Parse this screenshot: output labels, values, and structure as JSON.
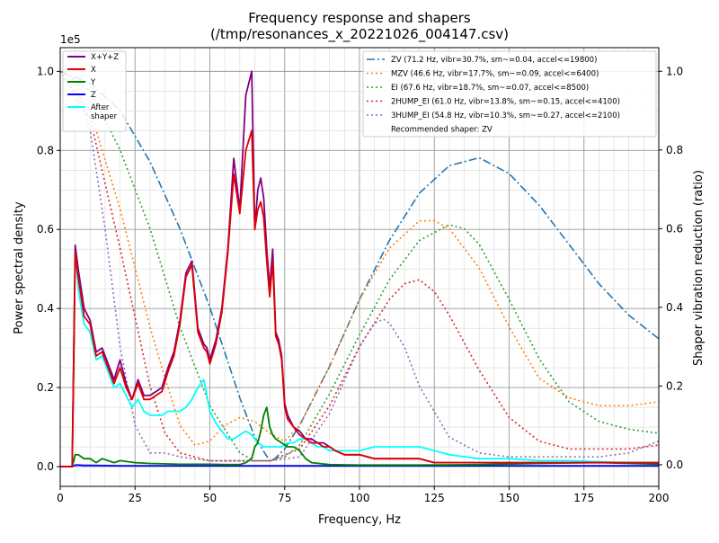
{
  "chart_data": {
    "type": "line",
    "title": "Frequency response and shapers",
    "subtitle": "(/tmp/resonances_x_20221026_004147.csv)",
    "xlabel": "Frequency, Hz",
    "ylabel": "Power spectral density",
    "y2label": "Shaper vibration reduction (ratio)",
    "y_scale_label": "1e5",
    "xlim": [
      0,
      200
    ],
    "ylim": [
      -0.05,
      1.06
    ],
    "y2lim": [
      -0.055,
      1.06
    ],
    "x_ticks": [
      0,
      25,
      50,
      75,
      100,
      125,
      150,
      175,
      200
    ],
    "y_ticks": [
      0.0,
      0.2,
      0.4,
      0.6,
      0.8,
      1.0
    ],
    "y2_ticks": [
      0.0,
      0.2,
      0.4,
      0.6,
      0.8,
      1.0
    ],
    "grid": true,
    "legend_left_placement": "top-left",
    "legend_right_placement": "top-right",
    "recommended_text": "Recommended shaper: ZV",
    "psd_series": [
      {
        "name": "X+Y+Z",
        "color": "#800080",
        "style": "solid",
        "x": [
          0,
          4,
          5,
          6,
          8,
          10,
          12,
          14,
          16,
          18,
          20,
          22,
          24,
          26,
          28,
          30,
          32,
          34,
          36,
          38,
          40,
          42,
          44,
          46,
          48,
          49,
          50,
          52,
          54,
          56,
          58,
          60,
          62,
          64,
          65,
          66,
          67,
          68,
          69,
          70,
          71,
          72,
          73,
          74,
          75,
          76,
          78,
          80,
          82,
          84,
          86,
          88,
          90,
          92,
          95,
          100,
          105,
          110,
          115,
          120,
          125,
          130,
          140,
          150,
          160,
          170,
          180,
          190,
          200
        ],
        "y": [
          0,
          0,
          0.56,
          0.5,
          0.4,
          0.37,
          0.29,
          0.3,
          0.26,
          0.22,
          0.27,
          0.21,
          0.17,
          0.22,
          0.18,
          0.18,
          0.19,
          0.2,
          0.25,
          0.29,
          0.37,
          0.49,
          0.52,
          0.35,
          0.31,
          0.3,
          0.27,
          0.32,
          0.4,
          0.55,
          0.78,
          0.65,
          0.94,
          1.0,
          0.6,
          0.7,
          0.73,
          0.68,
          0.55,
          0.45,
          0.55,
          0.34,
          0.32,
          0.28,
          0.16,
          0.13,
          0.1,
          0.09,
          0.07,
          0.07,
          0.06,
          0.06,
          0.05,
          0.04,
          0.03,
          0.03,
          0.02,
          0.02,
          0.02,
          0.02,
          0.01,
          0.01,
          0.01,
          0.01,
          0.01,
          0.01,
          0.01,
          0.01,
          0.01
        ]
      },
      {
        "name": "X",
        "color": "#e00000",
        "style": "solid",
        "x": [
          0,
          4,
          5,
          6,
          8,
          10,
          12,
          14,
          16,
          18,
          20,
          22,
          24,
          26,
          28,
          30,
          32,
          34,
          36,
          38,
          40,
          42,
          44,
          46,
          48,
          49,
          50,
          52,
          54,
          56,
          58,
          60,
          62,
          64,
          65,
          66,
          67,
          68,
          69,
          70,
          71,
          72,
          73,
          74,
          75,
          76,
          78,
          80,
          82,
          84,
          86,
          88,
          90,
          92,
          95,
          100,
          105,
          110,
          115,
          120,
          125,
          130,
          140,
          150,
          160,
          170,
          180,
          190,
          200
        ],
        "y": [
          0,
          0,
          0.54,
          0.48,
          0.38,
          0.36,
          0.28,
          0.29,
          0.25,
          0.21,
          0.25,
          0.2,
          0.17,
          0.21,
          0.17,
          0.17,
          0.18,
          0.19,
          0.24,
          0.28,
          0.36,
          0.48,
          0.51,
          0.34,
          0.3,
          0.29,
          0.26,
          0.31,
          0.39,
          0.54,
          0.74,
          0.64,
          0.8,
          0.85,
          0.6,
          0.65,
          0.67,
          0.63,
          0.52,
          0.43,
          0.52,
          0.33,
          0.31,
          0.27,
          0.15,
          0.12,
          0.1,
          0.08,
          0.07,
          0.06,
          0.06,
          0.05,
          0.05,
          0.04,
          0.03,
          0.03,
          0.02,
          0.02,
          0.02,
          0.02,
          0.01,
          0.01,
          0.01,
          0.01,
          0.01,
          0.01,
          0.01,
          0.01,
          0.01
        ]
      },
      {
        "name": "Y",
        "color": "#008000",
        "style": "solid",
        "x": [
          0,
          4,
          5,
          6,
          8,
          10,
          12,
          14,
          16,
          18,
          20,
          25,
          30,
          40,
          50,
          55,
          60,
          62,
          64,
          65,
          66,
          67,
          68,
          69,
          70,
          71,
          72,
          74,
          76,
          78,
          80,
          82,
          84,
          90,
          100,
          120,
          140,
          160,
          180,
          200
        ],
        "y": [
          0,
          0,
          0.03,
          0.03,
          0.02,
          0.02,
          0.01,
          0.02,
          0.015,
          0.01,
          0.015,
          0.01,
          0.008,
          0.006,
          0.006,
          0.005,
          0.005,
          0.01,
          0.02,
          0.05,
          0.06,
          0.09,
          0.13,
          0.15,
          0.1,
          0.08,
          0.07,
          0.06,
          0.05,
          0.05,
          0.04,
          0.02,
          0.01,
          0.005,
          0.004,
          0.004,
          0.005,
          0.008,
          0.01,
          0.006
        ]
      },
      {
        "name": "Z",
        "color": "#0000ff",
        "style": "solid",
        "x": [
          0,
          4,
          5,
          6,
          8,
          10,
          20,
          40,
          60,
          80,
          100,
          120,
          140,
          160,
          180,
          200
        ],
        "y": [
          0,
          0,
          0.004,
          0.004,
          0.003,
          0.003,
          0.002,
          0.002,
          0.002,
          0.002,
          0.002,
          0.002,
          0.002,
          0.002,
          0.002,
          0.002
        ]
      },
      {
        "name": "After\nshaper",
        "color": "#00ffff",
        "style": "solid",
        "x": [
          0,
          4,
          5,
          6,
          8,
          10,
          12,
          14,
          16,
          18,
          20,
          22,
          24,
          26,
          28,
          30,
          32,
          34,
          36,
          38,
          40,
          42,
          44,
          46,
          48,
          50,
          52,
          54,
          56,
          58,
          60,
          62,
          64,
          66,
          68,
          70,
          72,
          74,
          76,
          78,
          80,
          82,
          84,
          86,
          88,
          90,
          92,
          95,
          100,
          105,
          110,
          115,
          120,
          125,
          130,
          140,
          150,
          160,
          170,
          180,
          190,
          200
        ],
        "y": [
          0,
          0,
          0.55,
          0.45,
          0.36,
          0.34,
          0.27,
          0.28,
          0.24,
          0.2,
          0.21,
          0.18,
          0.15,
          0.17,
          0.14,
          0.13,
          0.13,
          0.13,
          0.14,
          0.14,
          0.14,
          0.15,
          0.17,
          0.2,
          0.22,
          0.14,
          0.11,
          0.09,
          0.07,
          0.07,
          0.08,
          0.09,
          0.08,
          0.06,
          0.05,
          0.05,
          0.05,
          0.05,
          0.06,
          0.06,
          0.07,
          0.07,
          0.06,
          0.05,
          0.05,
          0.04,
          0.04,
          0.04,
          0.04,
          0.05,
          0.05,
          0.05,
          0.05,
          0.04,
          0.03,
          0.02,
          0.02,
          0.015,
          0.015,
          0.012,
          0.01,
          0.008
        ]
      }
    ],
    "shaper_series": [
      {
        "name": "ZV (71.2 Hz, vibr=30.7%, sm~=0.04, accel<=19800)",
        "color": "#1f77b4",
        "style": "dashdot",
        "x": [
          0,
          10,
          20,
          30,
          40,
          50,
          60,
          65,
          70,
          71,
          75,
          80,
          90,
          100,
          110,
          120,
          130,
          140,
          150,
          160,
          170,
          180,
          190,
          200
        ],
        "y": [
          1.0,
          0.97,
          0.9,
          0.77,
          0.6,
          0.4,
          0.17,
          0.07,
          0.01,
          0.01,
          0.04,
          0.1,
          0.25,
          0.42,
          0.57,
          0.69,
          0.76,
          0.78,
          0.74,
          0.66,
          0.56,
          0.46,
          0.38,
          0.32
        ]
      },
      {
        "name": "MZV (46.6 Hz, vibr=17.7%, sm~=0.09, accel<=6400)",
        "color": "#ff7f0e",
        "style": "dotted",
        "x": [
          0,
          10,
          20,
          30,
          35,
          40,
          45,
          50,
          55,
          60,
          65,
          70,
          75,
          80,
          90,
          100,
          110,
          120,
          125,
          130,
          140,
          150,
          160,
          170,
          180,
          190,
          200
        ],
        "y": [
          1.0,
          0.9,
          0.65,
          0.35,
          0.22,
          0.1,
          0.05,
          0.06,
          0.1,
          0.12,
          0.11,
          0.08,
          0.06,
          0.1,
          0.25,
          0.42,
          0.55,
          0.62,
          0.62,
          0.6,
          0.5,
          0.35,
          0.22,
          0.17,
          0.15,
          0.15,
          0.16
        ]
      },
      {
        "name": "EI (67.6 Hz, vibr=18.7%, sm~=0.07, accel<=8500)",
        "color": "#2ca02c",
        "style": "dotted",
        "x": [
          0,
          10,
          20,
          30,
          40,
          50,
          60,
          65,
          70,
          75,
          80,
          90,
          100,
          110,
          120,
          130,
          135,
          140,
          150,
          160,
          170,
          180,
          190,
          200
        ],
        "y": [
          1.0,
          0.95,
          0.8,
          0.6,
          0.35,
          0.15,
          0.03,
          0.01,
          0.01,
          0.02,
          0.05,
          0.18,
          0.33,
          0.47,
          0.57,
          0.61,
          0.6,
          0.56,
          0.42,
          0.27,
          0.16,
          0.11,
          0.09,
          0.08
        ]
      },
      {
        "name": "2HUMP_EI (61.0 Hz, vibr=13.8%, sm~=0.15, accel<=4100)",
        "color": "#d62728",
        "style": "dotted",
        "x": [
          0,
          10,
          20,
          30,
          35,
          40,
          50,
          60,
          70,
          80,
          90,
          100,
          110,
          115,
          120,
          125,
          130,
          140,
          150,
          160,
          170,
          180,
          190,
          200
        ],
        "y": [
          1.0,
          0.88,
          0.55,
          0.2,
          0.08,
          0.03,
          0.01,
          0.01,
          0.01,
          0.04,
          0.15,
          0.3,
          0.42,
          0.46,
          0.47,
          0.44,
          0.38,
          0.24,
          0.12,
          0.06,
          0.04,
          0.04,
          0.04,
          0.05
        ]
      },
      {
        "name": "3HUMP_EI (54.8 Hz, vibr=10.3%, sm~=0.27, accel<=2100)",
        "color": "#9467bd",
        "style": "dotted",
        "x": [
          0,
          5,
          10,
          15,
          20,
          25,
          30,
          35,
          40,
          50,
          60,
          70,
          80,
          90,
          100,
          105,
          108,
          110,
          115,
          120,
          130,
          140,
          150,
          160,
          170,
          180,
          190,
          200
        ],
        "y": [
          1.0,
          0.98,
          0.85,
          0.6,
          0.3,
          0.1,
          0.03,
          0.03,
          0.02,
          0.01,
          0.01,
          0.01,
          0.02,
          0.13,
          0.3,
          0.36,
          0.37,
          0.36,
          0.3,
          0.2,
          0.07,
          0.03,
          0.02,
          0.02,
          0.02,
          0.02,
          0.03,
          0.06
        ]
      }
    ]
  }
}
